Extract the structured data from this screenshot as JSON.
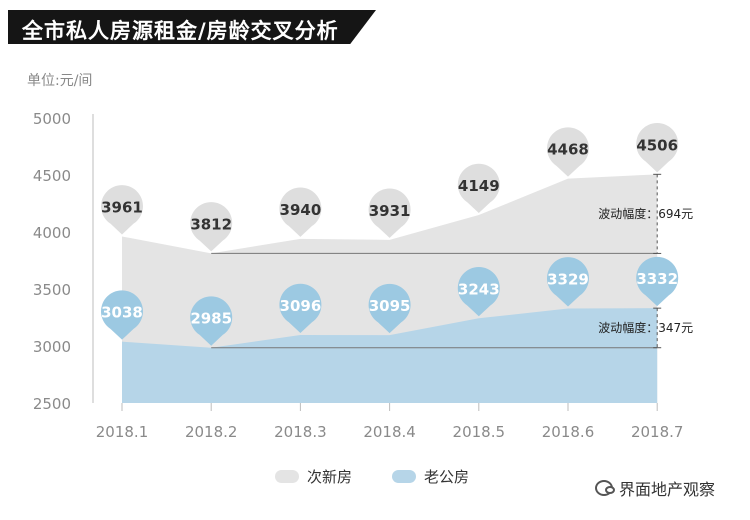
{
  "title": "全市私人房源租金/房龄交叉分析",
  "unit_label": "单位:元/间",
  "watermark": "界面地产观察",
  "colors": {
    "new_house_fill": "#e4e4e4",
    "old_house_fill": "#b6d5e8",
    "new_pin": "#dedede",
    "old_pin": "#9cc9e2",
    "title_bg": "#151515"
  },
  "chart_data": {
    "type": "area",
    "title": "全市私人房源租金/房龄交叉分析",
    "ylabel": "单位:元/间",
    "xlabel": "",
    "ylim": [
      2500,
      5000
    ],
    "yticks": [
      2500,
      3000,
      3500,
      4000,
      4500,
      5000
    ],
    "categories": [
      "2018.1",
      "2018.2",
      "2018.3",
      "2018.4",
      "2018.5",
      "2018.6",
      "2018.7"
    ],
    "series": [
      {
        "name": "次新房",
        "values": [
          3961,
          3812,
          3940,
          3931,
          4149,
          4468,
          4506
        ]
      },
      {
        "name": "老公房",
        "values": [
          3038,
          2985,
          3096,
          3095,
          3243,
          3329,
          3332
        ]
      }
    ],
    "annotations": [
      {
        "text": "波动幅度：694元",
        "series": "次新房",
        "from": 3812,
        "to": 4506
      },
      {
        "text": "波动幅度：347元",
        "series": "老公房",
        "from": 2985,
        "to": 3332
      }
    ],
    "legend": "bottom-center",
    "grid": false
  }
}
